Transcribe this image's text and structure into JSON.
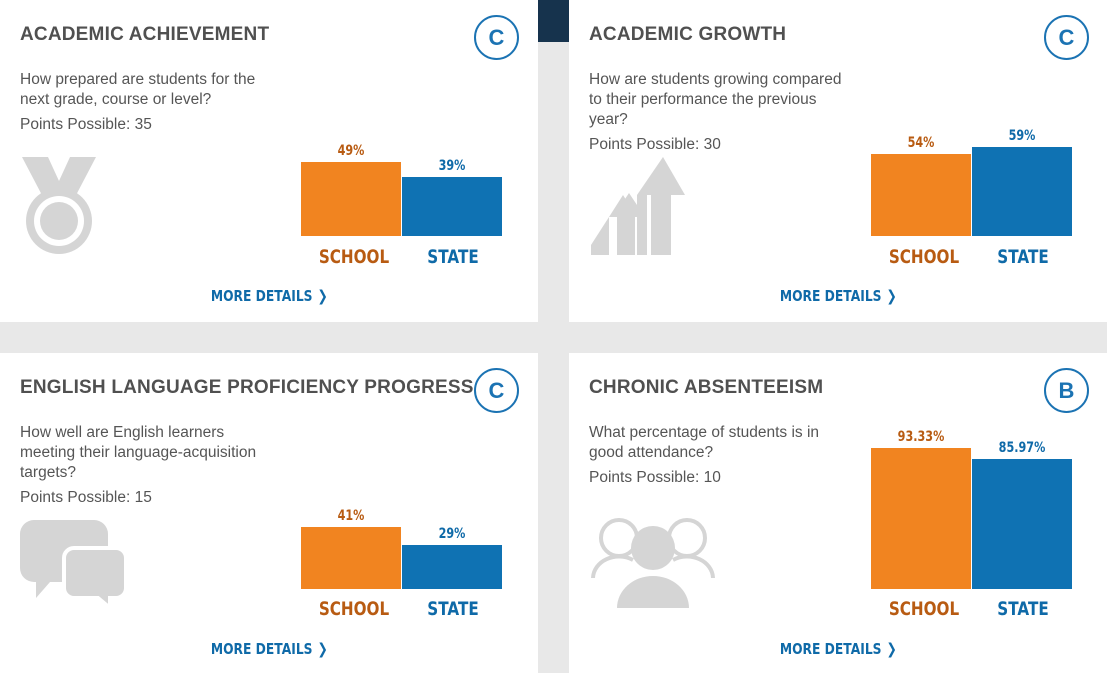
{
  "cards": [
    {
      "title": "ACADEMIC ACHIEVEMENT",
      "grade": "C",
      "question": "How prepared are students for the next grade, course or level?",
      "points": "Points Possible: 35",
      "icon": "medal-icon",
      "school_label": "49%",
      "state_label": "39%",
      "school_value": 49,
      "state_value": 39,
      "school_axis": "SCHOOL",
      "state_axis": "STATE",
      "more": "MORE DETAILS"
    },
    {
      "title": "ACADEMIC GROWTH",
      "grade": "C",
      "question": "How are students growing compared to their performance the previous year?",
      "points": "Points Possible: 30",
      "icon": "growth-arrows-icon",
      "school_label": "54%",
      "state_label": "59%",
      "school_value": 54,
      "state_value": 59,
      "school_axis": "SCHOOL",
      "state_axis": "STATE",
      "more": "MORE DETAILS"
    },
    {
      "title": "ENGLISH LANGUAGE PROFICIENCY PROGRESS",
      "grade": "C",
      "question": "How well are English learners meeting their language-acquisition targets?",
      "points": "Points Possible: 15",
      "icon": "speech-bubbles-icon",
      "school_label": "41%",
      "state_label": "29%",
      "school_value": 41,
      "state_value": 29,
      "school_axis": "SCHOOL",
      "state_axis": "STATE",
      "more": "MORE DETAILS"
    },
    {
      "title": "CHRONIC ABSENTEEISM",
      "grade": "B",
      "question": "What percentage of students is in good attendance?",
      "points": "Points Possible: 10",
      "icon": "people-group-icon",
      "school_label": "93.33%",
      "state_label": "85.97%",
      "school_value": 93.33,
      "state_value": 85.97,
      "school_axis": "SCHOOL",
      "state_axis": "STATE",
      "more": "MORE DETAILS"
    }
  ],
  "colors": {
    "school_bar": "#f18420",
    "state_bar": "#0f72b3",
    "grade_ring": "#1b73b3",
    "icon_gray": "#d5d5d5"
  }
}
